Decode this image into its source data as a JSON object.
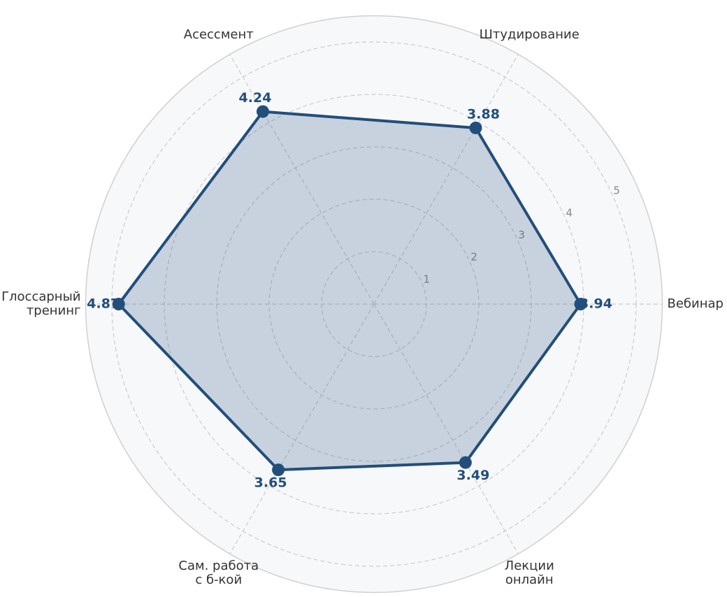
{
  "chart_data": {
    "type": "radar",
    "categories": [
      "Вебинар",
      "Штудирование",
      "Асессмент",
      "Глоссарный\nтренинг",
      "Сам. работа\nс б-кой",
      "Лекции\nонлайн"
    ],
    "series": [
      {
        "name": null,
        "color": "#224e7b",
        "values": [
          3.94,
          3.88,
          4.24,
          4.87,
          3.65,
          3.49
        ]
      }
    ],
    "rlim": [
      0,
      5.5
    ],
    "rticks": [
      1,
      2,
      3,
      4,
      5
    ],
    "grid": true
  }
}
